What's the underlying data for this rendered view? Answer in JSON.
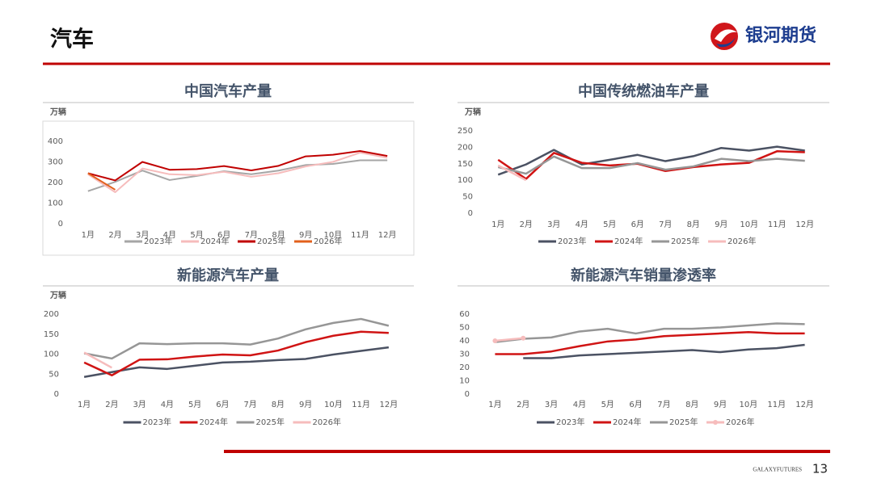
{
  "header": {
    "title": "汽车",
    "logo": "银河期货",
    "footer_brand": "GALAXYFUTURES",
    "page_number": "13"
  },
  "chart_data": [
    {
      "type": "line",
      "title": "中国汽车产量",
      "y_label": "万辆",
      "categories": [
        "1月",
        "2月",
        "3月",
        "4月",
        "5月",
        "6月",
        "7月",
        "8月",
        "9月",
        "10月",
        "11月",
        "12月"
      ],
      "ylim": [
        0,
        400
      ],
      "yticks": [
        0,
        100,
        200,
        300,
        400
      ],
      "grid": false,
      "series": [
        {
          "name": "2023年",
          "color": "#a6a6a6",
          "values": [
            158,
            203,
            258,
            212,
            232,
            255,
            240,
            258,
            285,
            290,
            308,
            308
          ]
        },
        {
          "name": "2024年",
          "color": "#f6bcbc",
          "values": [
            240,
            153,
            268,
            240,
            236,
            252,
            228,
            245,
            278,
            300,
            345,
            320
          ]
        },
        {
          "name": "2025年",
          "color": "#c00000",
          "values": [
            245,
            210,
            300,
            262,
            265,
            280,
            259,
            281,
            327,
            335,
            353,
            329
          ]
        },
        {
          "name": "2026年",
          "color": "#e2601c",
          "values": [
            245,
            165,
            null,
            null,
            null,
            null,
            null,
            null,
            null,
            null,
            null,
            null
          ]
        }
      ]
    },
    {
      "type": "line",
      "title": "中国传统燃油车产量",
      "y_label": "万辆",
      "categories": [
        "1月",
        "2月",
        "3月",
        "4月",
        "5月",
        "6月",
        "7月",
        "8月",
        "9月",
        "10月",
        "11月",
        "12月"
      ],
      "ylim": [
        0,
        250
      ],
      "yticks": [
        0,
        50,
        100,
        150,
        200,
        250
      ],
      "grid": false,
      "series": [
        {
          "name": "2023年",
          "color": "#4b5263",
          "values": [
            117,
            148,
            192,
            148,
            162,
            177,
            158,
            173,
            198,
            190,
            202,
            190
          ]
        },
        {
          "name": "2024年",
          "color": "#d01414",
          "values": [
            162,
            104,
            183,
            153,
            145,
            150,
            128,
            140,
            148,
            153,
            188,
            185
          ]
        },
        {
          "name": "2025年",
          "color": "#969696",
          "values": [
            140,
            120,
            172,
            137,
            137,
            152,
            132,
            142,
            165,
            158,
            165,
            159
          ]
        },
        {
          "name": "2026年",
          "color": "#f6bcbc",
          "values": [
            145,
            100,
            null,
            null,
            null,
            null,
            null,
            null,
            null,
            null,
            null,
            null
          ]
        }
      ]
    },
    {
      "type": "line",
      "title": "新能源汽车产量",
      "y_label": "万辆",
      "categories": [
        "1月",
        "2月",
        "3月",
        "4月",
        "5月",
        "6月",
        "7月",
        "8月",
        "9月",
        "10月",
        "11月",
        "12月"
      ],
      "ylim": [
        0,
        200
      ],
      "yticks": [
        0,
        50,
        100,
        150,
        200
      ],
      "grid": false,
      "series": [
        {
          "name": "2023年",
          "color": "#4b5263",
          "values": [
            43,
            55,
            67,
            63,
            71,
            79,
            81,
            85,
            88,
            99,
            108,
            117
          ]
        },
        {
          "name": "2024年",
          "color": "#d01414",
          "values": [
            79,
            47,
            86,
            87,
            94,
            99,
            97,
            109,
            130,
            146,
            156,
            153
          ]
        },
        {
          "name": "2025年",
          "color": "#969696",
          "values": [
            102,
            89,
            127,
            125,
            127,
            127,
            124,
            139,
            162,
            178,
            188,
            171
          ]
        },
        {
          "name": "2026年",
          "color": "#f6bcbc",
          "values": [
            104,
            66,
            null,
            null,
            null,
            null,
            null,
            null,
            null,
            null,
            null,
            null
          ]
        }
      ]
    },
    {
      "type": "line",
      "title": "新能源汽车销量渗透率",
      "categories": [
        "1月",
        "2月",
        "3月",
        "4月",
        "5月",
        "6月",
        "7月",
        "8月",
        "9月",
        "10月",
        "11月",
        "12月"
      ],
      "ylim": [
        0,
        60
      ],
      "yticks": [
        0,
        10,
        20,
        30,
        40,
        50,
        60
      ],
      "grid": false,
      "series": [
        {
          "name": "2023年",
          "color": "#4b5263",
          "values": [
            null,
            27,
            27,
            29,
            30,
            31,
            32,
            33,
            31.5,
            33.5,
            34.5,
            37
          ]
        },
        {
          "name": "2024年",
          "color": "#d01414",
          "values": [
            30,
            30,
            32,
            36,
            39.5,
            41,
            43.5,
            44.5,
            45.5,
            46.5,
            45.5,
            45.5
          ]
        },
        {
          "name": "2025年",
          "color": "#969696",
          "values": [
            39,
            41.5,
            42.5,
            47,
            49,
            45.5,
            49,
            49,
            50,
            51.5,
            53,
            52.5
          ]
        },
        {
          "name": "2026年",
          "color": "#f6bcbc",
          "markers": true,
          "values": [
            40,
            42,
            null,
            null,
            null,
            null,
            null,
            null,
            null,
            null,
            null,
            null
          ]
        }
      ]
    }
  ]
}
